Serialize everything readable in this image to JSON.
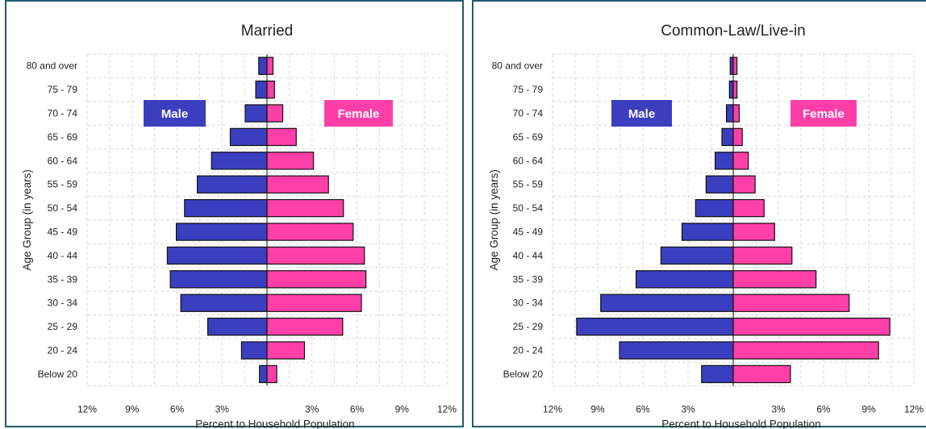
{
  "chart_data": [
    {
      "type": "bar",
      "orientation": "horizontal",
      "style": "population-pyramid",
      "title": "Married",
      "xlabel": "Percent to Household Population",
      "ylabel": "Age Group (in years)",
      "categories": [
        "80 and over",
        "75 - 79",
        "70 - 74",
        "65 - 69",
        "60 - 64",
        "55 - 59",
        "50 - 54",
        "45 - 49",
        "40 - 44",
        "35 - 39",
        "30 - 34",
        "25 - 29",
        "20 - 24",
        "Below 20"
      ],
      "x_ticks": [
        "12%",
        "9%",
        "6%",
        "3%",
        "3%",
        "6%",
        "9%",
        "12%"
      ],
      "xlim": [
        -12,
        12
      ],
      "grid": true,
      "series": [
        {
          "name": "Male",
          "color": "#3b3fbf",
          "side": "left",
          "values": [
            0.55,
            0.75,
            1.45,
            2.45,
            3.7,
            4.65,
            5.5,
            6.05,
            6.65,
            6.45,
            5.75,
            3.95,
            1.7,
            0.5
          ]
        },
        {
          "name": "Female",
          "color": "#ff3fa8",
          "side": "right",
          "values": [
            0.4,
            0.5,
            1.05,
            1.95,
            3.1,
            4.1,
            5.1,
            5.75,
            6.5,
            6.6,
            6.3,
            5.05,
            2.5,
            0.65
          ]
        }
      ]
    },
    {
      "type": "bar",
      "orientation": "horizontal",
      "style": "population-pyramid",
      "title": "Common-Law/Live-in",
      "xlabel": "Percent to Household Population",
      "ylabel": "Age Group (in years)",
      "categories": [
        "80 and over",
        "75 - 79",
        "70 - 74",
        "65 - 69",
        "60 - 64",
        "55 - 59",
        "50 - 54",
        "45 - 49",
        "40 - 44",
        "35 - 39",
        "30 - 34",
        "25 - 29",
        "20 - 24",
        "Below 20"
      ],
      "x_ticks": [
        "12%",
        "9%",
        "6%",
        "3%",
        "3%",
        "6%",
        "9%",
        "12%"
      ],
      "xlim": [
        -12,
        12
      ],
      "grid": true,
      "series": [
        {
          "name": "Male",
          "color": "#3b3fbf",
          "side": "left",
          "values": [
            0.2,
            0.25,
            0.45,
            0.75,
            1.2,
            1.8,
            2.5,
            3.4,
            4.8,
            6.45,
            8.8,
            10.4,
            7.55,
            2.1
          ]
        },
        {
          "name": "Female",
          "color": "#ff3fa8",
          "side": "right",
          "values": [
            0.25,
            0.25,
            0.4,
            0.6,
            1.0,
            1.45,
            2.05,
            2.75,
            3.9,
            5.5,
            7.7,
            10.4,
            9.65,
            3.8
          ]
        }
      ]
    }
  ]
}
